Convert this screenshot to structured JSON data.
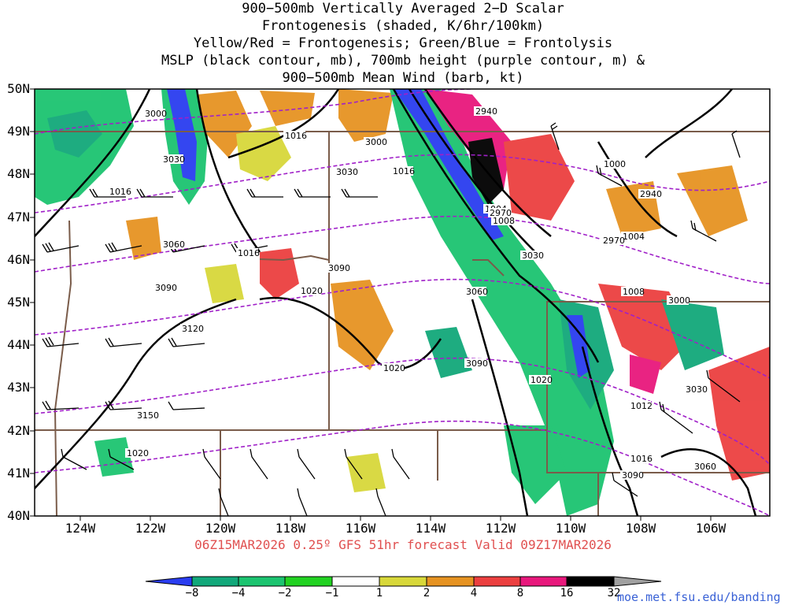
{
  "title_lines": [
    "900−500mb Vertically Averaged 2−D Scalar",
    "Frontogenesis (shaded, K/6hr/100km)",
    "Yellow/Red = Frontogenesis;  Green/Blue = Frontolysis",
    "MSLP (black contour, mb), 700mb height (purple contour, m) &",
    "900−500mb Mean Wind (barb, kt)"
  ],
  "lat_labels": [
    "50N",
    "49N",
    "48N",
    "47N",
    "46N",
    "45N",
    "44N",
    "43N",
    "42N",
    "41N",
    "40N"
  ],
  "lon_labels": [
    "124W",
    "122W",
    "120W",
    "118W",
    "116W",
    "114W",
    "112W",
    "110W",
    "108W",
    "106W"
  ],
  "valid_line": "06Z15MAR2026 0.25º GFS 51hr forecast Valid 09Z17MAR2026",
  "colorbar": {
    "labels": [
      "−8",
      "−4",
      "−2",
      "−1",
      "1",
      "2",
      "4",
      "8",
      "16",
      "32"
    ],
    "colors": [
      "#2a3df0",
      "#12a87a",
      "#1cc470",
      "#22d222",
      "#ffffff",
      "#d8d83a",
      "#e69322",
      "#ec4040",
      "#e8187c",
      "#000000",
      "#a0a0a0"
    ]
  },
  "url": "moe.met.fsu.edu/banding",
  "mslp_labels": [
    "1016",
    "1016",
    "1016",
    "1016",
    "1004",
    "1008",
    "1000",
    "1004",
    "1008",
    "1020",
    "1020",
    "1020",
    "1016",
    "1012",
    "1020"
  ],
  "height_labels": [
    "3000",
    "3030",
    "3000",
    "3030",
    "2940",
    "3060",
    "3090",
    "3090",
    "3120",
    "3150",
    "3030",
    "2940",
    "3060",
    "3090",
    "3000",
    "3030",
    "3060",
    "3090",
    "2970",
    "2970"
  ]
}
